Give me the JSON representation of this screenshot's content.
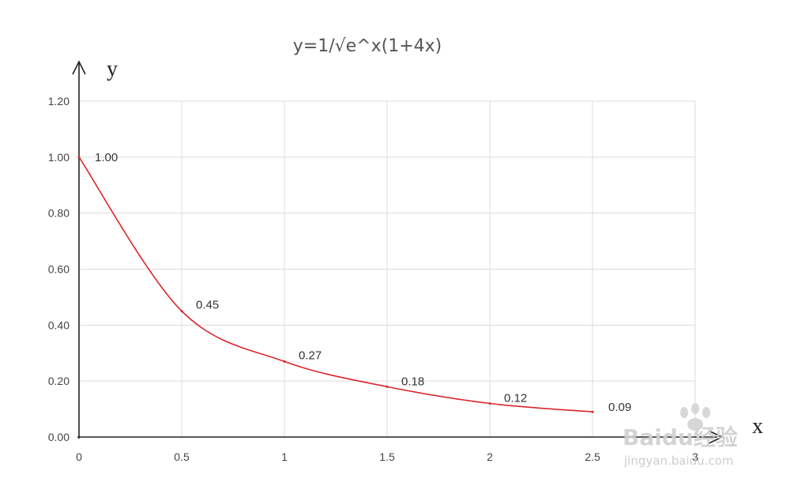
{
  "chart_data": {
    "type": "line",
    "title": "y=1/√e^x(1+4x)",
    "xlabel": "x",
    "ylabel": "y",
    "x": [
      0,
      0.5,
      1,
      1.5,
      2,
      2.5
    ],
    "series": [
      {
        "values": [
          1.0,
          0.45,
          0.27,
          0.18,
          0.12,
          0.09
        ]
      }
    ],
    "data_labels": [
      "1.00",
      "0.45",
      "0.27",
      "0.18",
      "0.12",
      "0.09"
    ],
    "xticks": [
      "0",
      "0.5",
      "1",
      "1.5",
      "2",
      "2.5",
      "3"
    ],
    "yticks": [
      "0.00",
      "0.20",
      "0.40",
      "0.60",
      "0.80",
      "1.00",
      "1.20"
    ],
    "xlim": [
      0,
      3
    ],
    "ylim": [
      0,
      1.2
    ],
    "grid": true,
    "legend": "none",
    "line_color": "#d9262c"
  },
  "watermark": {
    "brand": "Baidu经验",
    "sub": "jingyan.baidu.com"
  }
}
